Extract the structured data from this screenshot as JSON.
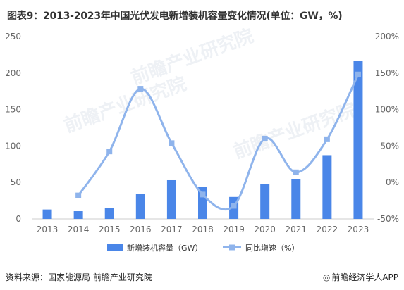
{
  "header": {
    "title": "图表9：2013-2023年中国光伏发电新增装机容量变化情况(单位：GW，%)"
  },
  "footer": {
    "source": "资料来源：国家能源局 前瞻产业研究院",
    "brand_icon": "qianzhan-logo-icon",
    "brand": "前瞻经济学人APP"
  },
  "watermark": "前瞻产业研究院",
  "colors": {
    "bar": "#4a86e8",
    "line": "#8fb4ec",
    "axis_text": "#666666",
    "grid": "#e0e0e0"
  },
  "chart_data": {
    "type": "bar",
    "categories": [
      "2013",
      "2014",
      "2015",
      "2016",
      "2017",
      "2018",
      "2019",
      "2020",
      "2021",
      "2022",
      "2023"
    ],
    "series": [
      {
        "name": "新增装机容量（GW）",
        "type": "bar",
        "axis": "left",
        "values": [
          12.9,
          10.6,
          15.1,
          34.5,
          53.1,
          44.3,
          30.1,
          48.2,
          54.9,
          87.4,
          216.9
        ]
      },
      {
        "name": "同比增速（%）",
        "type": "line",
        "axis": "right",
        "values": [
          null,
          -17.8,
          42.5,
          128.5,
          53.9,
          -16.6,
          -32.1,
          60.1,
          13.9,
          59.2,
          148.1
        ]
      }
    ],
    "y_left": {
      "ticks": [
        "0",
        "50",
        "100",
        "150",
        "200",
        "250"
      ],
      "min": 0,
      "max": 250
    },
    "y_right": {
      "ticks": [
        "-50%",
        "0%",
        "50%",
        "100%",
        "150%",
        "200%"
      ],
      "min": -50,
      "max": 200
    },
    "legend_placement": "bottom-center",
    "grid": false
  }
}
